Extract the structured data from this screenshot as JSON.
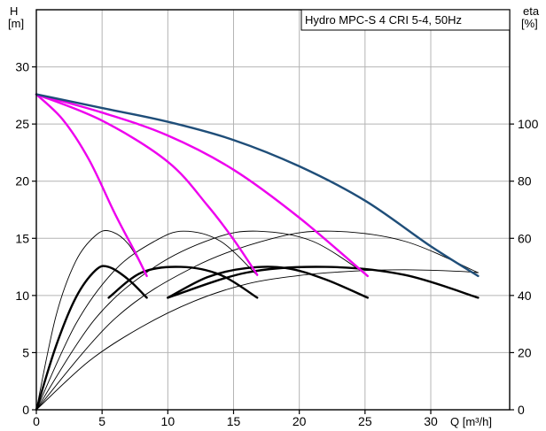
{
  "chart_data": {
    "type": "line",
    "title": "Hydro MPC-S 4 CRI 5-4, 50Hz",
    "xlabel": "Q [m³/h]",
    "ylabel_left": [
      "H",
      "[m]"
    ],
    "ylabel_right": [
      "eta",
      "[%]"
    ],
    "xlim": [
      0,
      36
    ],
    "ylim_left": [
      0,
      35
    ],
    "ylim_right": [
      0,
      140
    ],
    "x_ticks": [
      0,
      5,
      10,
      15,
      20,
      25,
      30
    ],
    "y_ticks_left": [
      0,
      5,
      10,
      15,
      20,
      25,
      30
    ],
    "y_ticks_right": [
      0,
      20,
      40,
      60,
      80,
      100
    ],
    "grid": true,
    "colors": {
      "head_max": "#1f4e79",
      "head_pumps": "#ee00ee",
      "power": "#000000",
      "eta": "#000000",
      "grid": "#b4b4b4"
    },
    "series": [
      {
        "group": "head_max",
        "axis": "left",
        "x": [
          0,
          5,
          10,
          15,
          20,
          25,
          30,
          33.6
        ],
        "y": [
          27.6,
          26.4,
          25.2,
          23.6,
          21.3,
          18.3,
          14.3,
          11.7
        ]
      },
      {
        "group": "head_pumps",
        "axis": "left",
        "x": [
          0,
          2,
          4,
          6,
          7.5,
          8.4
        ],
        "y": [
          27.6,
          25.4,
          21.9,
          17.1,
          13.8,
          11.7
        ]
      },
      {
        "group": "head_pumps",
        "axis": "left",
        "x": [
          0,
          5,
          10,
          13,
          15,
          16.8
        ],
        "y": [
          27.6,
          25.3,
          21.7,
          17.9,
          14.9,
          11.8
        ]
      },
      {
        "group": "head_pumps",
        "axis": "left",
        "x": [
          0,
          5,
          10,
          15,
          20,
          25.2
        ],
        "y": [
          27.6,
          26.0,
          24.0,
          21.0,
          16.8,
          11.7
        ]
      },
      {
        "group": "power",
        "axis": "left",
        "x": [
          0,
          1.5,
          3,
          4.5,
          5.5,
          7,
          8.4
        ],
        "y": [
          0,
          5.6,
          9.8,
          12.2,
          12.5,
          11.4,
          9.8
        ]
      },
      {
        "group": "power",
        "axis": "left",
        "x": [
          5.5,
          8,
          11,
          14,
          16.8
        ],
        "y": [
          9.8,
          12.0,
          12.5,
          11.8,
          9.8
        ]
      },
      {
        "group": "power",
        "axis": "left",
        "x": [
          10,
          13,
          16,
          19,
          22,
          25.2
        ],
        "y": [
          9.8,
          11.6,
          12.4,
          12.4,
          11.4,
          9.8
        ]
      },
      {
        "group": "power",
        "axis": "left",
        "x": [
          10,
          16,
          22,
          28,
          33.6
        ],
        "y": [
          9.8,
          12.0,
          12.5,
          11.8,
          9.8
        ]
      },
      {
        "group": "eta",
        "axis": "right",
        "x": [
          0,
          1.5,
          3,
          4.5,
          5.6,
          7,
          8.4
        ],
        "y": [
          0,
          33,
          52,
          61,
          62.5,
          58,
          47
        ]
      },
      {
        "group": "eta",
        "axis": "right",
        "x": [
          0,
          3,
          6,
          9,
          11.2,
          14,
          16.8
        ],
        "y": [
          0,
          30,
          49,
          59,
          62.5,
          59,
          47
        ]
      },
      {
        "group": "eta",
        "axis": "right",
        "x": [
          0,
          4.5,
          9,
          13.5,
          16.8,
          21,
          25.2
        ],
        "y": [
          0,
          32,
          50,
          60,
          62.5,
          59,
          47
        ]
      },
      {
        "group": "eta",
        "axis": "right",
        "x": [
          0,
          6,
          12,
          18,
          22.4,
          28,
          33.6
        ],
        "y": [
          0,
          32,
          50,
          60,
          62.5,
          59,
          48
        ]
      },
      {
        "group": "eta",
        "axis": "right",
        "x": [
          0,
          4,
          8,
          12,
          16,
          20,
          24,
          28,
          32,
          33.6
        ],
        "y": [
          0,
          17,
          29,
          38,
          44,
          47,
          48.5,
          49,
          48.5,
          48
        ]
      }
    ]
  }
}
